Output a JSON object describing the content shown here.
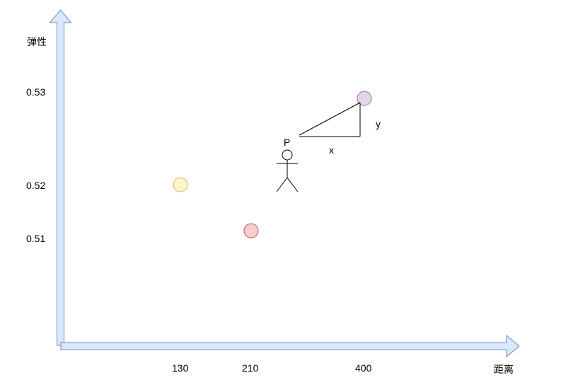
{
  "axes": {
    "y_label": "弹性",
    "x_label": "距离",
    "y_ticks": [
      "0.53",
      "0.52",
      "0.51"
    ],
    "x_ticks": [
      "130",
      "210",
      "400"
    ]
  },
  "points": [
    {
      "name": "yellow",
      "fill": "#fff2cc",
      "stroke": "#d6b656"
    },
    {
      "name": "red",
      "fill": "#f8cecc",
      "stroke": "#b85450"
    },
    {
      "name": "purple",
      "fill": "#e1d5e7",
      "stroke": "#9673a6"
    }
  ],
  "figure": {
    "label": "P"
  },
  "triangle": {
    "x_label": "x",
    "y_label": "y"
  },
  "colors": {
    "axis_fill": "#dae8fc",
    "axis_stroke": "#6c8ebf",
    "line": "#000000"
  }
}
